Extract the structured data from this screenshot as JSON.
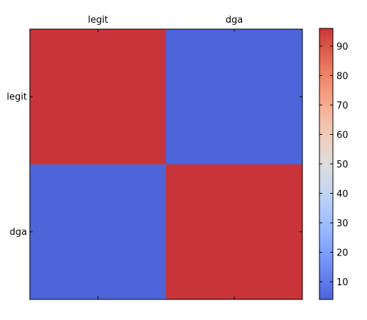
{
  "chart_data": {
    "type": "heatmap",
    "x_categories": [
      "legit",
      "dga"
    ],
    "y_categories": [
      "legit",
      "dga"
    ],
    "values": [
      [
        96,
        4
      ],
      [
        4,
        96
      ]
    ],
    "colormap": "coolwarm",
    "colorbar": {
      "min": 4,
      "max": 96,
      "ticks": [
        10,
        20,
        30,
        40,
        50,
        60,
        70,
        80,
        90
      ]
    },
    "x_axis_position": "top",
    "grid": false
  }
}
